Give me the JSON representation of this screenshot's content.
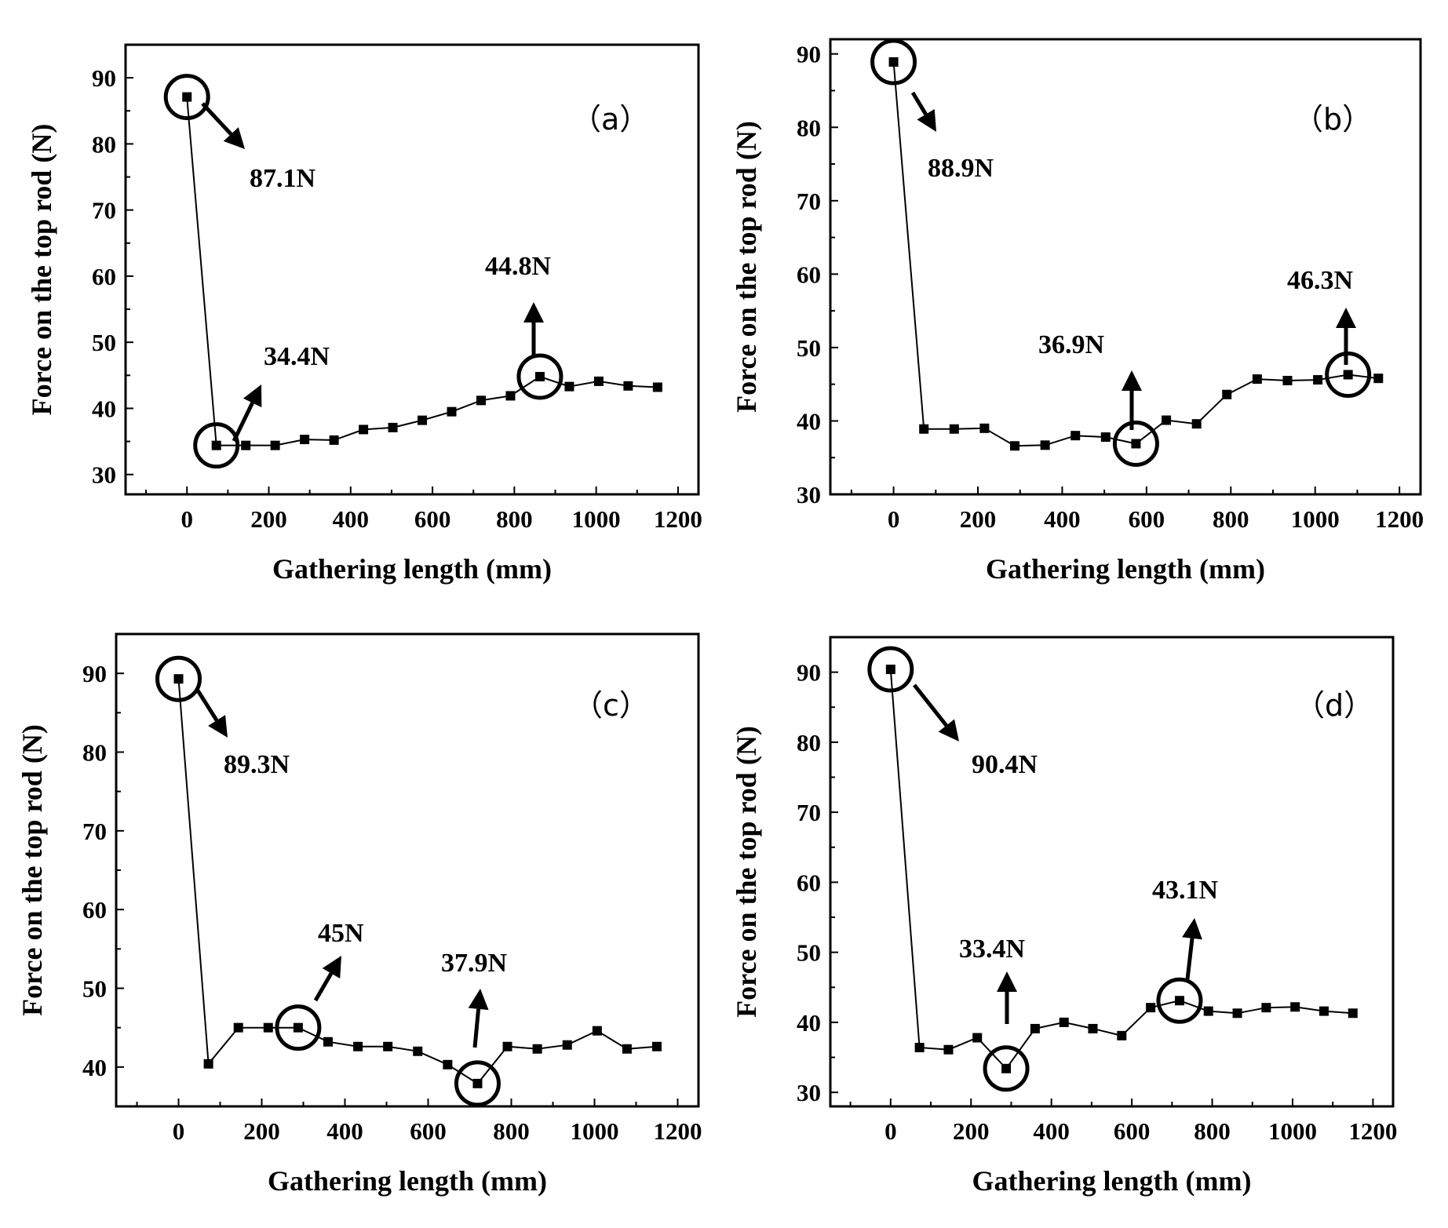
{
  "chart_data": [
    {
      "type": "line",
      "panel_label": "（a）",
      "xlabel": "Gathering length (mm)",
      "ylabel": "Force on the  top rod (N)",
      "xlim": [
        -150,
        1250
      ],
      "ylim": [
        27,
        95
      ],
      "xticks": [
        0,
        200,
        400,
        600,
        800,
        1000,
        1200
      ],
      "yticks": [
        30,
        40,
        50,
        60,
        70,
        80,
        90
      ],
      "x": [
        0,
        71.9,
        143.8,
        215.6,
        287.5,
        359.4,
        431.3,
        503.1,
        575,
        646.9,
        718.8,
        790.6,
        862.5,
        934.4,
        1006.3,
        1078.1,
        1150
      ],
      "series": [
        {
          "name": "",
          "values": [
            87.1,
            34.4,
            34.4,
            34.4,
            35.3,
            35.2,
            36.8,
            37.1,
            38.2,
            39.5,
            41.2,
            41.9,
            44.8,
            43.3,
            44.1,
            43.4,
            43.2
          ]
        }
      ],
      "annotations": [
        {
          "text": "87.1N",
          "x": 0,
          "y": 87.1,
          "arrow": "down-right"
        },
        {
          "text": "34.4N",
          "x": 71.9,
          "y": 34.4,
          "arrow": "up-right"
        },
        {
          "text": "44.8N",
          "x": 862.5,
          "y": 44.8,
          "arrow": "up"
        }
      ]
    },
    {
      "type": "line",
      "panel_label": "（b）",
      "xlabel": "Gathering length (mm)",
      "ylabel": "Force on the top rod (N)",
      "xlim": [
        -150,
        1250
      ],
      "ylim": [
        30,
        92
      ],
      "xticks": [
        0,
        200,
        400,
        600,
        800,
        1000,
        1200
      ],
      "yticks": [
        30,
        40,
        50,
        60,
        70,
        80,
        90
      ],
      "x": [
        0,
        71.9,
        143.8,
        215.6,
        287.5,
        359.4,
        431.3,
        503.1,
        575,
        646.9,
        718.8,
        790.6,
        862.5,
        934.4,
        1006.3,
        1078.1,
        1150
      ],
      "series": [
        {
          "name": "",
          "values": [
            88.9,
            38.9,
            38.9,
            39,
            36.6,
            36.7,
            38,
            37.8,
            36.9,
            40.1,
            39.6,
            43.6,
            45.7,
            45.5,
            45.6,
            46.3,
            45.8
          ]
        }
      ],
      "annotations": [
        {
          "text": "88.9N",
          "x": 0,
          "y": 88.9,
          "arrow": "down-right"
        },
        {
          "text": "36.9N",
          "x": 575,
          "y": 36.9,
          "arrow": "up"
        },
        {
          "text": "46.3N",
          "x": 1078.1,
          "y": 46.3,
          "arrow": "up"
        }
      ]
    },
    {
      "type": "line",
      "panel_label": "（c）",
      "xlabel": "Gathering length (mm)",
      "ylabel": "Force on the top rod (N)",
      "xlim": [
        -150,
        1250
      ],
      "ylim": [
        35,
        95
      ],
      "xticks": [
        0,
        200,
        400,
        600,
        800,
        1000,
        1200
      ],
      "yticks": [
        40,
        50,
        60,
        70,
        80,
        90
      ],
      "x": [
        0,
        71.9,
        143.8,
        215.6,
        287.5,
        359.4,
        431.3,
        503.1,
        575,
        646.9,
        718.8,
        790.6,
        862.5,
        934.4,
        1006.3,
        1078.1,
        1150
      ],
      "series": [
        {
          "name": "",
          "values": [
            89.3,
            40.4,
            45,
            45,
            45,
            43.2,
            42.6,
            42.6,
            42,
            40.3,
            37.9,
            42.6,
            42.3,
            42.8,
            44.6,
            42.3,
            42.6
          ]
        }
      ],
      "annotations": [
        {
          "text": "89.3N",
          "x": 0,
          "y": 89.3,
          "arrow": "down-right"
        },
        {
          "text": "45N",
          "x": 287.5,
          "y": 45,
          "arrow": "up-right"
        },
        {
          "text": "37.9N",
          "x": 718.8,
          "y": 37.9,
          "arrow": "up"
        }
      ]
    },
    {
      "type": "line",
      "panel_label": "（d）",
      "xlabel": "Gathering length (mm)",
      "ylabel": "Force on the top rod (N)",
      "xlim": [
        -150,
        1250
      ],
      "ylim": [
        28,
        95
      ],
      "xticks": [
        0,
        200,
        400,
        600,
        800,
        1000,
        1200
      ],
      "yticks": [
        30,
        40,
        50,
        60,
        70,
        80,
        90
      ],
      "x": [
        0,
        71.9,
        143.8,
        215.6,
        287.5,
        359.4,
        431.3,
        503.1,
        575,
        646.9,
        718.8,
        790.6,
        862.5,
        934.4,
        1006.3,
        1078.1,
        1150
      ],
      "series": [
        {
          "name": "",
          "values": [
            90.4,
            36.4,
            36.1,
            37.8,
            33.4,
            39.1,
            40,
            39.1,
            38.1,
            42.1,
            43.1,
            41.6,
            41.3,
            42.1,
            42.2,
            41.6,
            41.3
          ]
        }
      ],
      "annotations": [
        {
          "text": "90.4N",
          "x": 0,
          "y": 90.4,
          "arrow": "down-right"
        },
        {
          "text": "33.4N",
          "x": 287.5,
          "y": 33.4,
          "arrow": "up"
        },
        {
          "text": "43.1N",
          "x": 718.8,
          "y": 43.1,
          "arrow": "up"
        }
      ]
    }
  ]
}
